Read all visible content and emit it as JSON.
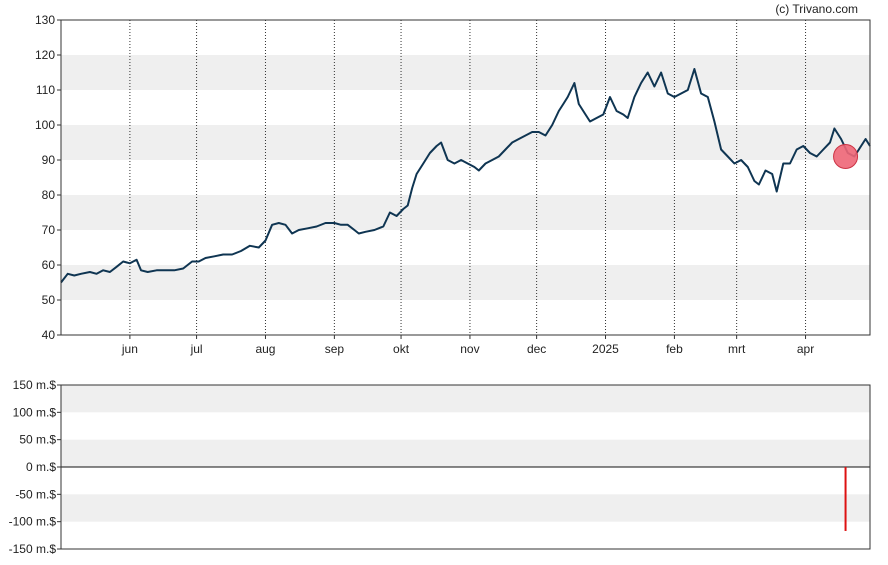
{
  "credit": "(c) Trivano.com",
  "colors": {
    "band": "#efefef",
    "price_line": "#0f3552",
    "marker_fill": "#ee6677",
    "marker_stroke": "#cc3344",
    "volume_bar": "#dd1111"
  },
  "chart_data": [
    {
      "type": "line",
      "title": "",
      "xlabel": "",
      "ylabel": "",
      "ylim": [
        40,
        130
      ],
      "yticks": [
        40,
        50,
        60,
        70,
        80,
        90,
        100,
        110,
        120,
        130
      ],
      "xlim": [
        "2024-05-01",
        "2025-04-30"
      ],
      "x_ticks": [
        {
          "label": "jun",
          "date": "2024-06-01"
        },
        {
          "label": "jul",
          "date": "2024-07-01"
        },
        {
          "label": "aug",
          "date": "2024-08-01"
        },
        {
          "label": "sep",
          "date": "2024-09-01"
        },
        {
          "label": "okt",
          "date": "2024-10-01"
        },
        {
          "label": "nov",
          "date": "2024-11-01"
        },
        {
          "label": "dec",
          "date": "2024-12-01"
        },
        {
          "label": "2025",
          "date": "2025-01-01"
        },
        {
          "label": "feb",
          "date": "2025-02-01"
        },
        {
          "label": "mrt",
          "date": "2025-03-01"
        },
        {
          "label": "apr",
          "date": "2025-04-01"
        }
      ],
      "grid": "horizontal bands, dotted vertical month lines",
      "series": [
        {
          "points": [
            [
              "2024-05-01",
              55
            ],
            [
              "2024-05-04",
              57.5
            ],
            [
              "2024-05-07",
              57
            ],
            [
              "2024-05-10",
              57.5
            ],
            [
              "2024-05-14",
              58
            ],
            [
              "2024-05-17",
              57.5
            ],
            [
              "2024-05-20",
              58.5
            ],
            [
              "2024-05-23",
              58
            ],
            [
              "2024-05-26",
              59.5
            ],
            [
              "2024-05-29",
              61
            ],
            [
              "2024-06-01",
              60.5
            ],
            [
              "2024-06-04",
              61.5
            ],
            [
              "2024-06-06",
              58.5
            ],
            [
              "2024-06-09",
              58
            ],
            [
              "2024-06-13",
              58.5
            ],
            [
              "2024-06-17",
              58.5
            ],
            [
              "2024-06-21",
              58.5
            ],
            [
              "2024-06-25",
              59
            ],
            [
              "2024-06-29",
              61
            ],
            [
              "2024-07-02",
              61
            ],
            [
              "2024-07-05",
              62
            ],
            [
              "2024-07-09",
              62.5
            ],
            [
              "2024-07-13",
              63
            ],
            [
              "2024-07-17",
              63
            ],
            [
              "2024-07-21",
              64
            ],
            [
              "2024-07-25",
              65.5
            ],
            [
              "2024-07-29",
              65
            ],
            [
              "2024-08-01",
              67
            ],
            [
              "2024-08-04",
              71.5
            ],
            [
              "2024-08-07",
              72
            ],
            [
              "2024-08-10",
              71.5
            ],
            [
              "2024-08-13",
              69
            ],
            [
              "2024-08-16",
              70
            ],
            [
              "2024-08-20",
              70.5
            ],
            [
              "2024-08-24",
              71
            ],
            [
              "2024-08-28",
              72
            ],
            [
              "2024-09-01",
              72
            ],
            [
              "2024-09-04",
              71.5
            ],
            [
              "2024-09-07",
              71.5
            ],
            [
              "2024-09-10",
              70
            ],
            [
              "2024-09-12",
              69
            ],
            [
              "2024-09-15",
              69.5
            ],
            [
              "2024-09-19",
              70
            ],
            [
              "2024-09-23",
              71
            ],
            [
              "2024-09-26",
              75
            ],
            [
              "2024-09-29",
              74
            ],
            [
              "2024-10-02",
              76
            ],
            [
              "2024-10-04",
              77
            ],
            [
              "2024-10-06",
              82
            ],
            [
              "2024-10-08",
              86
            ],
            [
              "2024-10-11",
              89
            ],
            [
              "2024-10-14",
              92
            ],
            [
              "2024-10-17",
              94
            ],
            [
              "2024-10-19",
              95
            ],
            [
              "2024-10-22",
              90
            ],
            [
              "2024-10-25",
              89
            ],
            [
              "2024-10-28",
              90
            ],
            [
              "2024-10-31",
              89
            ],
            [
              "2024-11-03",
              88
            ],
            [
              "2024-11-05",
              87
            ],
            [
              "2024-11-08",
              89
            ],
            [
              "2024-11-11",
              90
            ],
            [
              "2024-11-14",
              91
            ],
            [
              "2024-11-17",
              93
            ],
            [
              "2024-11-20",
              95
            ],
            [
              "2024-11-23",
              96
            ],
            [
              "2024-11-26",
              97
            ],
            [
              "2024-11-29",
              98
            ],
            [
              "2024-12-02",
              98
            ],
            [
              "2024-12-05",
              97
            ],
            [
              "2024-12-08",
              100
            ],
            [
              "2024-12-11",
              104
            ],
            [
              "2024-12-13",
              106
            ],
            [
              "2024-12-15",
              108
            ],
            [
              "2024-12-18",
              112
            ],
            [
              "2024-12-20",
              106
            ],
            [
              "2024-12-23",
              103
            ],
            [
              "2024-12-25",
              101
            ],
            [
              "2024-12-28",
              102
            ],
            [
              "2024-12-31",
              103
            ],
            [
              "2025-01-03",
              108
            ],
            [
              "2025-01-06",
              104
            ],
            [
              "2025-01-09",
              103
            ],
            [
              "2025-01-11",
              102
            ],
            [
              "2025-01-14",
              108
            ],
            [
              "2025-01-17",
              112
            ],
            [
              "2025-01-20",
              115
            ],
            [
              "2025-01-23",
              111
            ],
            [
              "2025-01-26",
              115
            ],
            [
              "2025-01-29",
              109
            ],
            [
              "2025-02-01",
              108
            ],
            [
              "2025-02-04",
              109
            ],
            [
              "2025-02-07",
              110
            ],
            [
              "2025-02-10",
              116
            ],
            [
              "2025-02-13",
              109
            ],
            [
              "2025-02-16",
              108
            ],
            [
              "2025-02-19",
              101
            ],
            [
              "2025-02-22",
              93
            ],
            [
              "2025-02-25",
              91
            ],
            [
              "2025-02-28",
              89
            ],
            [
              "2025-03-03",
              90
            ],
            [
              "2025-03-06",
              88
            ],
            [
              "2025-03-09",
              84
            ],
            [
              "2025-03-11",
              83
            ],
            [
              "2025-03-14",
              87
            ],
            [
              "2025-03-17",
              86
            ],
            [
              "2025-03-19",
              81
            ],
            [
              "2025-03-22",
              89
            ],
            [
              "2025-03-25",
              89
            ],
            [
              "2025-03-28",
              93
            ],
            [
              "2025-03-31",
              94
            ],
            [
              "2025-04-03",
              92
            ],
            [
              "2025-04-06",
              91
            ],
            [
              "2025-04-09",
              93
            ],
            [
              "2025-04-12",
              95
            ],
            [
              "2025-04-14",
              99
            ],
            [
              "2025-04-17",
              96
            ],
            [
              "2025-04-20",
              92
            ],
            [
              "2025-04-23",
              91
            ],
            [
              "2025-04-26",
              94
            ],
            [
              "2025-04-28",
              96
            ],
            [
              "2025-04-30",
              94
            ]
          ]
        }
      ],
      "marker": {
        "date": "2025-04-19",
        "value": 91
      }
    },
    {
      "type": "bar",
      "title": "",
      "xlabel": "",
      "ylabel": "",
      "ylim": [
        -150,
        150
      ],
      "yticks": [
        {
          "value": 150,
          "label": "150 m.$"
        },
        {
          "value": 100,
          "label": "100 m.$"
        },
        {
          "value": 50,
          "label": "50 m.$"
        },
        {
          "value": 0,
          "label": "0 m.$"
        },
        {
          "value": -50,
          "label": "-50 m.$"
        },
        {
          "value": -100,
          "label": "-100 m.$"
        },
        {
          "value": -150,
          "label": "-150 m.$"
        }
      ],
      "xlim": [
        "2024-05-01",
        "2025-04-30"
      ],
      "bars": [
        {
          "date": "2025-04-19",
          "value": -117
        }
      ]
    }
  ]
}
